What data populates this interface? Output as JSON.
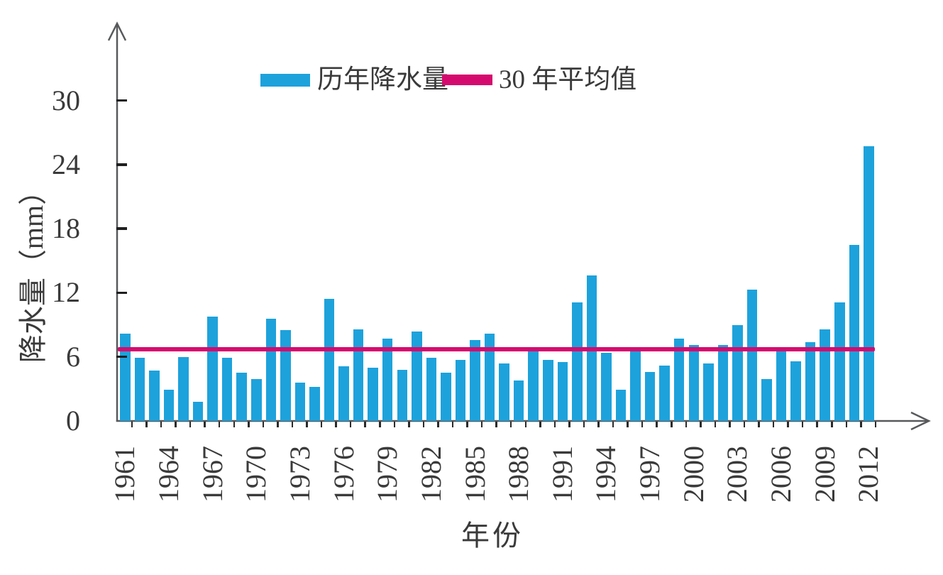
{
  "page": {
    "background": "#ffffff"
  },
  "chart_data": {
    "type": "bar",
    "title": "",
    "xlabel": "年份",
    "ylabel": "降水量（mm）",
    "categories": [
      "1961",
      "1962",
      "1963",
      "1964",
      "1965",
      "1966",
      "1967",
      "1968",
      "1969",
      "1970",
      "1971",
      "1972",
      "1973",
      "1974",
      "1975",
      "1976",
      "1977",
      "1978",
      "1979",
      "1980",
      "1981",
      "1982",
      "1983",
      "1984",
      "1985",
      "1986",
      "1987",
      "1988",
      "1989",
      "1990",
      "1991",
      "1992",
      "1993",
      "1994",
      "1995",
      "1996",
      "1997",
      "1998",
      "1999",
      "2000",
      "2001",
      "2002",
      "2003",
      "2004",
      "2005",
      "2006",
      "2007",
      "2008",
      "2009",
      "2010",
      "2011",
      "2012"
    ],
    "series": [
      {
        "name": "历年降水量",
        "type": "bar",
        "color": "#1da2dc",
        "values": [
          8.2,
          5.9,
          4.7,
          2.9,
          6.0,
          1.8,
          9.8,
          5.9,
          4.5,
          3.9,
          9.6,
          8.5,
          3.6,
          3.2,
          11.4,
          5.1,
          8.6,
          5.0,
          7.7,
          4.8,
          8.4,
          5.9,
          4.5,
          5.7,
          7.6,
          8.2,
          5.4,
          3.8,
          6.6,
          5.7,
          5.5,
          11.1,
          13.6,
          6.4,
          2.9,
          6.5,
          4.6,
          5.2,
          7.7,
          7.1,
          5.4,
          7.1,
          9.0,
          12.3,
          3.9,
          6.5,
          5.6,
          7.4,
          8.6,
          11.1,
          16.5,
          25.7
        ]
      },
      {
        "name": "30 年平均值",
        "type": "hline",
        "color": "#d50a6e",
        "value": 6.7
      }
    ],
    "yticks": [
      0,
      6,
      12,
      18,
      24,
      30
    ],
    "ylim": [
      0,
      33
    ],
    "xtick_labels_shown": [
      "1961",
      "1964",
      "1967",
      "1970",
      "1973",
      "1976",
      "1979",
      "1982",
      "1985",
      "1988",
      "1991",
      "1994",
      "1997",
      "2000",
      "2003",
      "2006",
      "2009",
      "2012"
    ],
    "legend_position": "top-center",
    "grid": false,
    "axis_color": "#58595b"
  }
}
